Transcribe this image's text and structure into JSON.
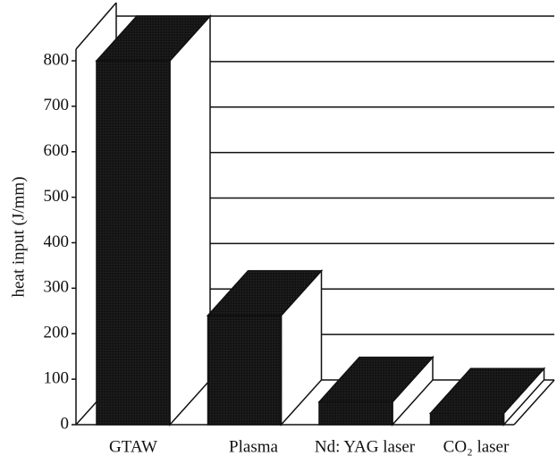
{
  "chart_data": {
    "type": "bar3d",
    "y_label": "heat input (J/mm)",
    "categories": [
      "GTAW",
      "Plasma",
      "Nd: YAG laser",
      "CO₂ laser"
    ],
    "values": [
      800,
      240,
      50,
      25
    ],
    "ylim": [
      0,
      800
    ],
    "yticks": [
      0,
      100,
      200,
      300,
      400,
      500,
      600,
      700,
      800
    ],
    "grid": true
  }
}
